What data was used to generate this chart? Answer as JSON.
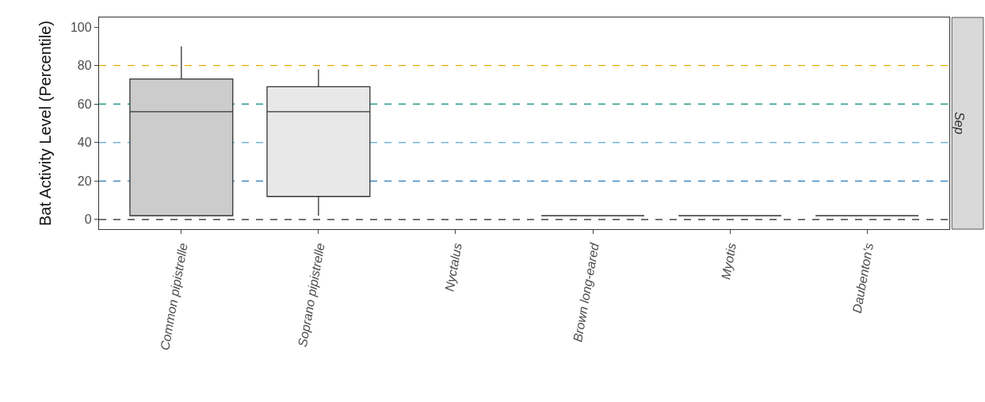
{
  "chart_data": {
    "type": "box",
    "ylabel": "Bat Activity Level (Percentile)",
    "categories": [
      "Common pipistrelle",
      "Soprano pipistrelle",
      "Nyctalus",
      "Brown long-eared",
      "Myotis",
      "Daubenton's"
    ],
    "boxes": [
      {
        "low": 2,
        "q1": 2,
        "median": 56,
        "q3": 73,
        "high": 90
      },
      {
        "low": 2,
        "q1": 12,
        "median": 56,
        "q3": 69,
        "high": 78
      },
      null,
      {
        "low": 2,
        "q1": 2,
        "median": 2,
        "q3": 2,
        "high": 2
      },
      {
        "low": 2,
        "q1": 2,
        "median": 2,
        "q3": 2,
        "high": 2
      },
      {
        "low": 2,
        "q1": 2,
        "median": 2,
        "q3": 2,
        "high": 2
      }
    ],
    "colors": [
      "#cccccc",
      "#e8e8e8",
      null,
      "#333333",
      "#333333",
      "#333333"
    ],
    "ylim": [
      -5,
      105
    ],
    "yticks": [
      0,
      20,
      40,
      60,
      80,
      100
    ],
    "ref_lines": [
      {
        "axis": "y",
        "value": 0,
        "color": "#222222",
        "line_style": "dashed"
      },
      {
        "axis": "y",
        "value": 20,
        "color": "#2b7bba",
        "line_style": "dashed"
      },
      {
        "axis": "y",
        "value": 40,
        "color": "#74b4d9",
        "line_style": "dashed"
      },
      {
        "axis": "y",
        "value": 60,
        "color": "#2a9d8f",
        "line_style": "dashed"
      },
      {
        "axis": "y",
        "value": 80,
        "color": "#e6ab02",
        "line_style": "dashed"
      }
    ],
    "annotations": [
      "Sep"
    ]
  }
}
